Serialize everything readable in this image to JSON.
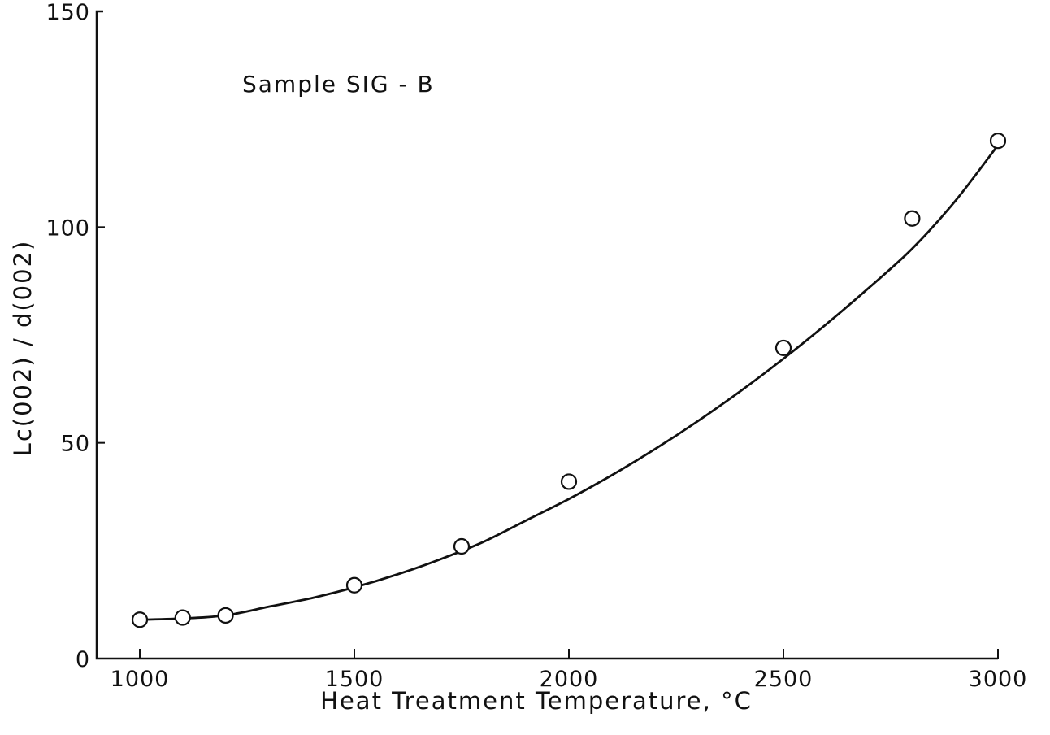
{
  "chart_data": {
    "type": "scatter",
    "title": "",
    "annotation": "Sample  SIG - B",
    "xlabel": "Heat Treatment Temperature, °C",
    "ylabel": "Lc(002) / d(002)",
    "xlim": [
      900,
      3000
    ],
    "ylim": [
      0,
      150
    ],
    "xticks": [
      1000,
      1500,
      2000,
      2500,
      3000
    ],
    "xtick_labels": [
      "1000",
      "1500",
      "2000",
      "2500",
      "3000"
    ],
    "yticks": [
      0,
      50,
      100,
      150
    ],
    "ytick_labels": [
      "0",
      "50",
      "100",
      "150"
    ],
    "grid": false,
    "series": [
      {
        "marker": "open-circle",
        "x": [
          1000,
          1100,
          1200,
          1500,
          1750,
          2000,
          2500,
          2800,
          3000
        ],
        "y": [
          9,
          9.5,
          10,
          17,
          26,
          41,
          72,
          102,
          120
        ]
      }
    ],
    "fit_curve": {
      "x": [
        1000,
        1100,
        1200,
        1300,
        1400,
        1500,
        1600,
        1700,
        1800,
        1900,
        2000,
        2100,
        2200,
        2300,
        2400,
        2500,
        2600,
        2700,
        2800,
        2900,
        3000
      ],
      "y": [
        9,
        9.3,
        10,
        12,
        14,
        16.5,
        19.5,
        23,
        27,
        32,
        37,
        42.5,
        48.5,
        55,
        62,
        69.5,
        77.5,
        86,
        95,
        106,
        119
      ]
    }
  }
}
